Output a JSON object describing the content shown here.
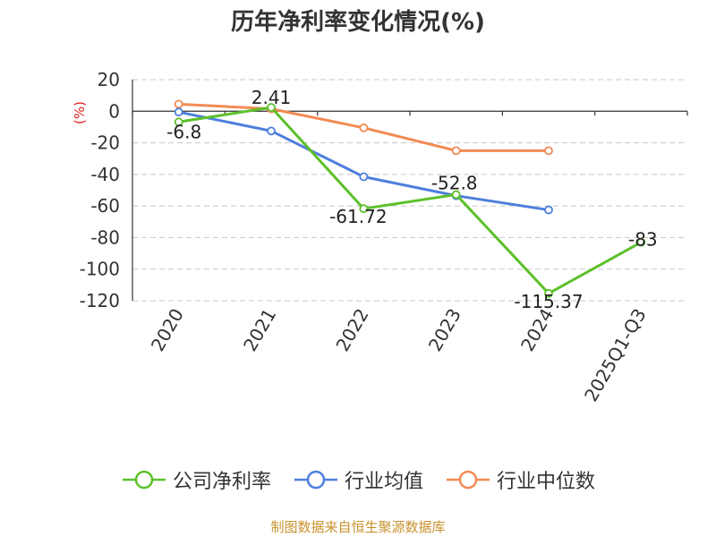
{
  "chart_data": {
    "type": "line",
    "title": "历年净利率变化情况(%)",
    "ylabel": "(%)",
    "categories": [
      "2020",
      "2021",
      "2022",
      "2023",
      "2024",
      "2025Q1-Q3"
    ],
    "ylim": [
      -120,
      20
    ],
    "yticks": [
      20,
      0,
      -20,
      -40,
      -60,
      -80,
      -100,
      -120
    ],
    "grid": true,
    "legend_position": "bottom",
    "series": [
      {
        "name": "公司净利率",
        "color": "#5cc02a",
        "values": [
          -6.8,
          2.41,
          -61.72,
          -52.8,
          -115.37,
          -83
        ],
        "labels": [
          "-6.8",
          "2.41",
          "-61.72",
          "-52.8",
          "-115.37",
          "-83"
        ]
      },
      {
        "name": "行业均值",
        "color": "#4e7fdd",
        "values": [
          -0.5,
          -12.5,
          -41.5,
          -53.5,
          -62.5,
          null
        ]
      },
      {
        "name": "行业中位数",
        "color": "#f28b54",
        "values": [
          4.5,
          1.5,
          -10.5,
          -25,
          -25,
          null
        ]
      }
    ]
  },
  "source_note": "制图数据来自恒生聚源数据库"
}
